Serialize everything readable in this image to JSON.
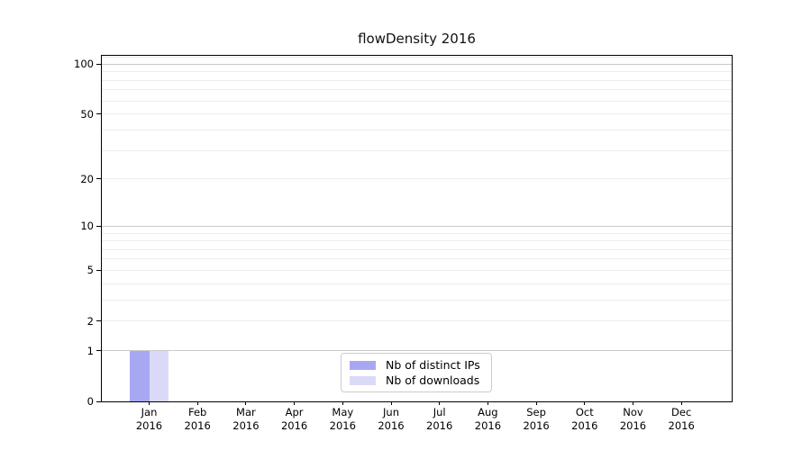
{
  "title": "flowDensity 2016",
  "chart_data": {
    "type": "bar",
    "title": "flowDensity 2016",
    "x_ticks": [
      {
        "month": "Jan",
        "year": "2016"
      },
      {
        "month": "Feb",
        "year": "2016"
      },
      {
        "month": "Mar",
        "year": "2016"
      },
      {
        "month": "Apr",
        "year": "2016"
      },
      {
        "month": "May",
        "year": "2016"
      },
      {
        "month": "Jun",
        "year": "2016"
      },
      {
        "month": "Jul",
        "year": "2016"
      },
      {
        "month": "Aug",
        "year": "2016"
      },
      {
        "month": "Sep",
        "year": "2016"
      },
      {
        "month": "Oct",
        "year": "2016"
      },
      {
        "month": "Nov",
        "year": "2016"
      },
      {
        "month": "Dec",
        "year": "2016"
      }
    ],
    "series": [
      {
        "name": "Nb of distinct IPs",
        "color": "#a8a8f2",
        "values": [
          1,
          0,
          0,
          0,
          0,
          0,
          0,
          0,
          0,
          0,
          0,
          0
        ]
      },
      {
        "name": "Nb of downloads",
        "color": "#dadaf8",
        "values": [
          1,
          0,
          0,
          0,
          0,
          0,
          0,
          0,
          0,
          0,
          0,
          0
        ]
      }
    ],
    "y_ticks": [
      0,
      1,
      2,
      5,
      10,
      20,
      50,
      100
    ],
    "y_scale": "log1p",
    "ylim": [
      0,
      112
    ],
    "grid": "horizontal",
    "grid_minor_values": [
      2,
      3,
      4,
      5,
      6,
      7,
      8,
      9,
      20,
      30,
      40,
      50,
      60,
      70,
      80,
      90,
      110
    ],
    "grid_major_values": [
      1,
      10,
      100
    ],
    "legend_position": "bottom-center",
    "colors": {
      "axis": "#000000",
      "grid_major": "#c9c9c9",
      "grid_minor": "#ececec"
    }
  }
}
